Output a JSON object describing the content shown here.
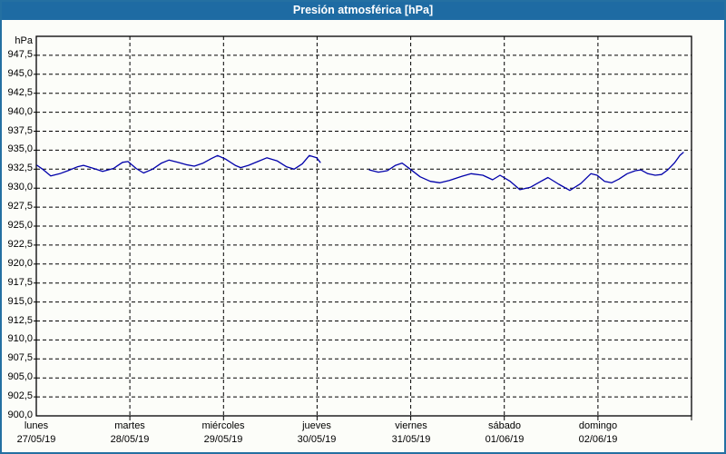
{
  "window": {
    "title": "Presión atmosférica [hPa]"
  },
  "colors": {
    "titlebar_bg": "#1e6ba3",
    "title_text": "#ffffff",
    "outer_border": "#2470a2",
    "background": "#fcfdf9",
    "plot_border": "#000000",
    "gridline": "#000000",
    "series_line": "#0000aa",
    "label_text": "#000000"
  },
  "chart_data": {
    "type": "line",
    "title": "Presión atmosférica [hPa]",
    "unit_label": "hPa",
    "ylabel": "hPa",
    "ylim": [
      900,
      950
    ],
    "y_tick_step": 2.5,
    "y_tick_labels": [
      "947,5",
      "945,0",
      "942,5",
      "940,0",
      "937,5",
      "935,0",
      "932,5",
      "930,0",
      "927,5",
      "925,0",
      "922,5",
      "920,0",
      "917,5",
      "915,0",
      "912,5",
      "910,0",
      "907,5",
      "905,0",
      "902,5",
      "900,0"
    ],
    "xlim_hours": [
      0,
      168
    ],
    "grid": "dashed",
    "legend": "none",
    "x_day_ticks": [
      {
        "name": "lunes",
        "date": "27/05/19",
        "hour": 0
      },
      {
        "name": "martes",
        "date": "28/05/19",
        "hour": 24
      },
      {
        "name": "miércoles",
        "date": "29/05/19",
        "hour": 48
      },
      {
        "name": "jueves",
        "date": "30/05/19",
        "hour": 72
      },
      {
        "name": "viernes",
        "date": "31/05/19",
        "hour": 96
      },
      {
        "name": "sábado",
        "date": "01/06/19",
        "hour": 120
      },
      {
        "name": "domingo",
        "date": "02/06/19",
        "hour": 144
      }
    ],
    "series": [
      {
        "name": "Presión atmosférica",
        "color": "#0000aa",
        "gap_note": "no data between hour 73 and hour 85 (Thursday morning)",
        "segments": [
          [
            [
              0.2,
              933.0
            ],
            [
              1.6,
              932.5
            ],
            [
              3.7,
              931.6
            ],
            [
              6.0,
              931.9
            ],
            [
              8.1,
              932.3
            ],
            [
              10.5,
              932.8
            ],
            [
              12.1,
              933.0
            ],
            [
              14.7,
              932.6
            ],
            [
              17.0,
              932.2
            ],
            [
              19.8,
              932.6
            ],
            [
              22.1,
              933.4
            ],
            [
              23.5,
              933.5
            ],
            [
              25.6,
              932.6
            ],
            [
              27.5,
              932.0
            ],
            [
              29.8,
              932.5
            ],
            [
              32.1,
              933.3
            ],
            [
              34.0,
              933.7
            ],
            [
              36.3,
              933.4
            ],
            [
              38.4,
              933.1
            ],
            [
              40.5,
              932.9
            ],
            [
              42.8,
              933.3
            ],
            [
              44.9,
              933.9
            ],
            [
              46.5,
              934.3
            ],
            [
              48.6,
              933.8
            ],
            [
              51.0,
              933.0
            ],
            [
              52.4,
              932.7
            ],
            [
              54.4,
              933.0
            ],
            [
              56.8,
              933.5
            ],
            [
              59.1,
              934.0
            ],
            [
              61.7,
              933.6
            ],
            [
              64.2,
              932.8
            ],
            [
              66.1,
              932.5
            ],
            [
              68.2,
              933.2
            ],
            [
              70.0,
              934.3
            ],
            [
              71.9,
              934.0
            ],
            [
              72.8,
              933.4
            ]
          ],
          [
            [
              85.4,
              932.4
            ],
            [
              87.7,
              932.1
            ],
            [
              90.0,
              932.3
            ],
            [
              92.1,
              933.0
            ],
            [
              93.8,
              933.3
            ],
            [
              95.9,
              932.5
            ],
            [
              98.4,
              931.5
            ],
            [
              101.0,
              930.9
            ],
            [
              103.5,
              930.7
            ],
            [
              105.9,
              931.0
            ],
            [
              108.7,
              931.5
            ],
            [
              111.5,
              931.9
            ],
            [
              114.5,
              931.7
            ],
            [
              117.0,
              931.1
            ],
            [
              118.9,
              931.7
            ],
            [
              121.5,
              930.9
            ],
            [
              124.0,
              929.8
            ],
            [
              126.6,
              930.1
            ],
            [
              129.4,
              930.9
            ],
            [
              131.2,
              931.4
            ],
            [
              134.0,
              930.5
            ],
            [
              136.8,
              929.7
            ],
            [
              139.6,
              930.6
            ],
            [
              142.2,
              931.9
            ],
            [
              143.8,
              931.7
            ],
            [
              145.7,
              930.9
            ],
            [
              147.5,
              930.7
            ],
            [
              149.4,
              931.2
            ],
            [
              151.5,
              931.9
            ],
            [
              153.6,
              932.3
            ],
            [
              155.0,
              932.4
            ],
            [
              156.8,
              931.9
            ],
            [
              158.7,
              931.7
            ],
            [
              160.3,
              931.8
            ],
            [
              161.9,
              932.4
            ],
            [
              163.6,
              933.3
            ],
            [
              165.0,
              934.3
            ],
            [
              165.9,
              934.7
            ]
          ]
        ]
      }
    ]
  }
}
